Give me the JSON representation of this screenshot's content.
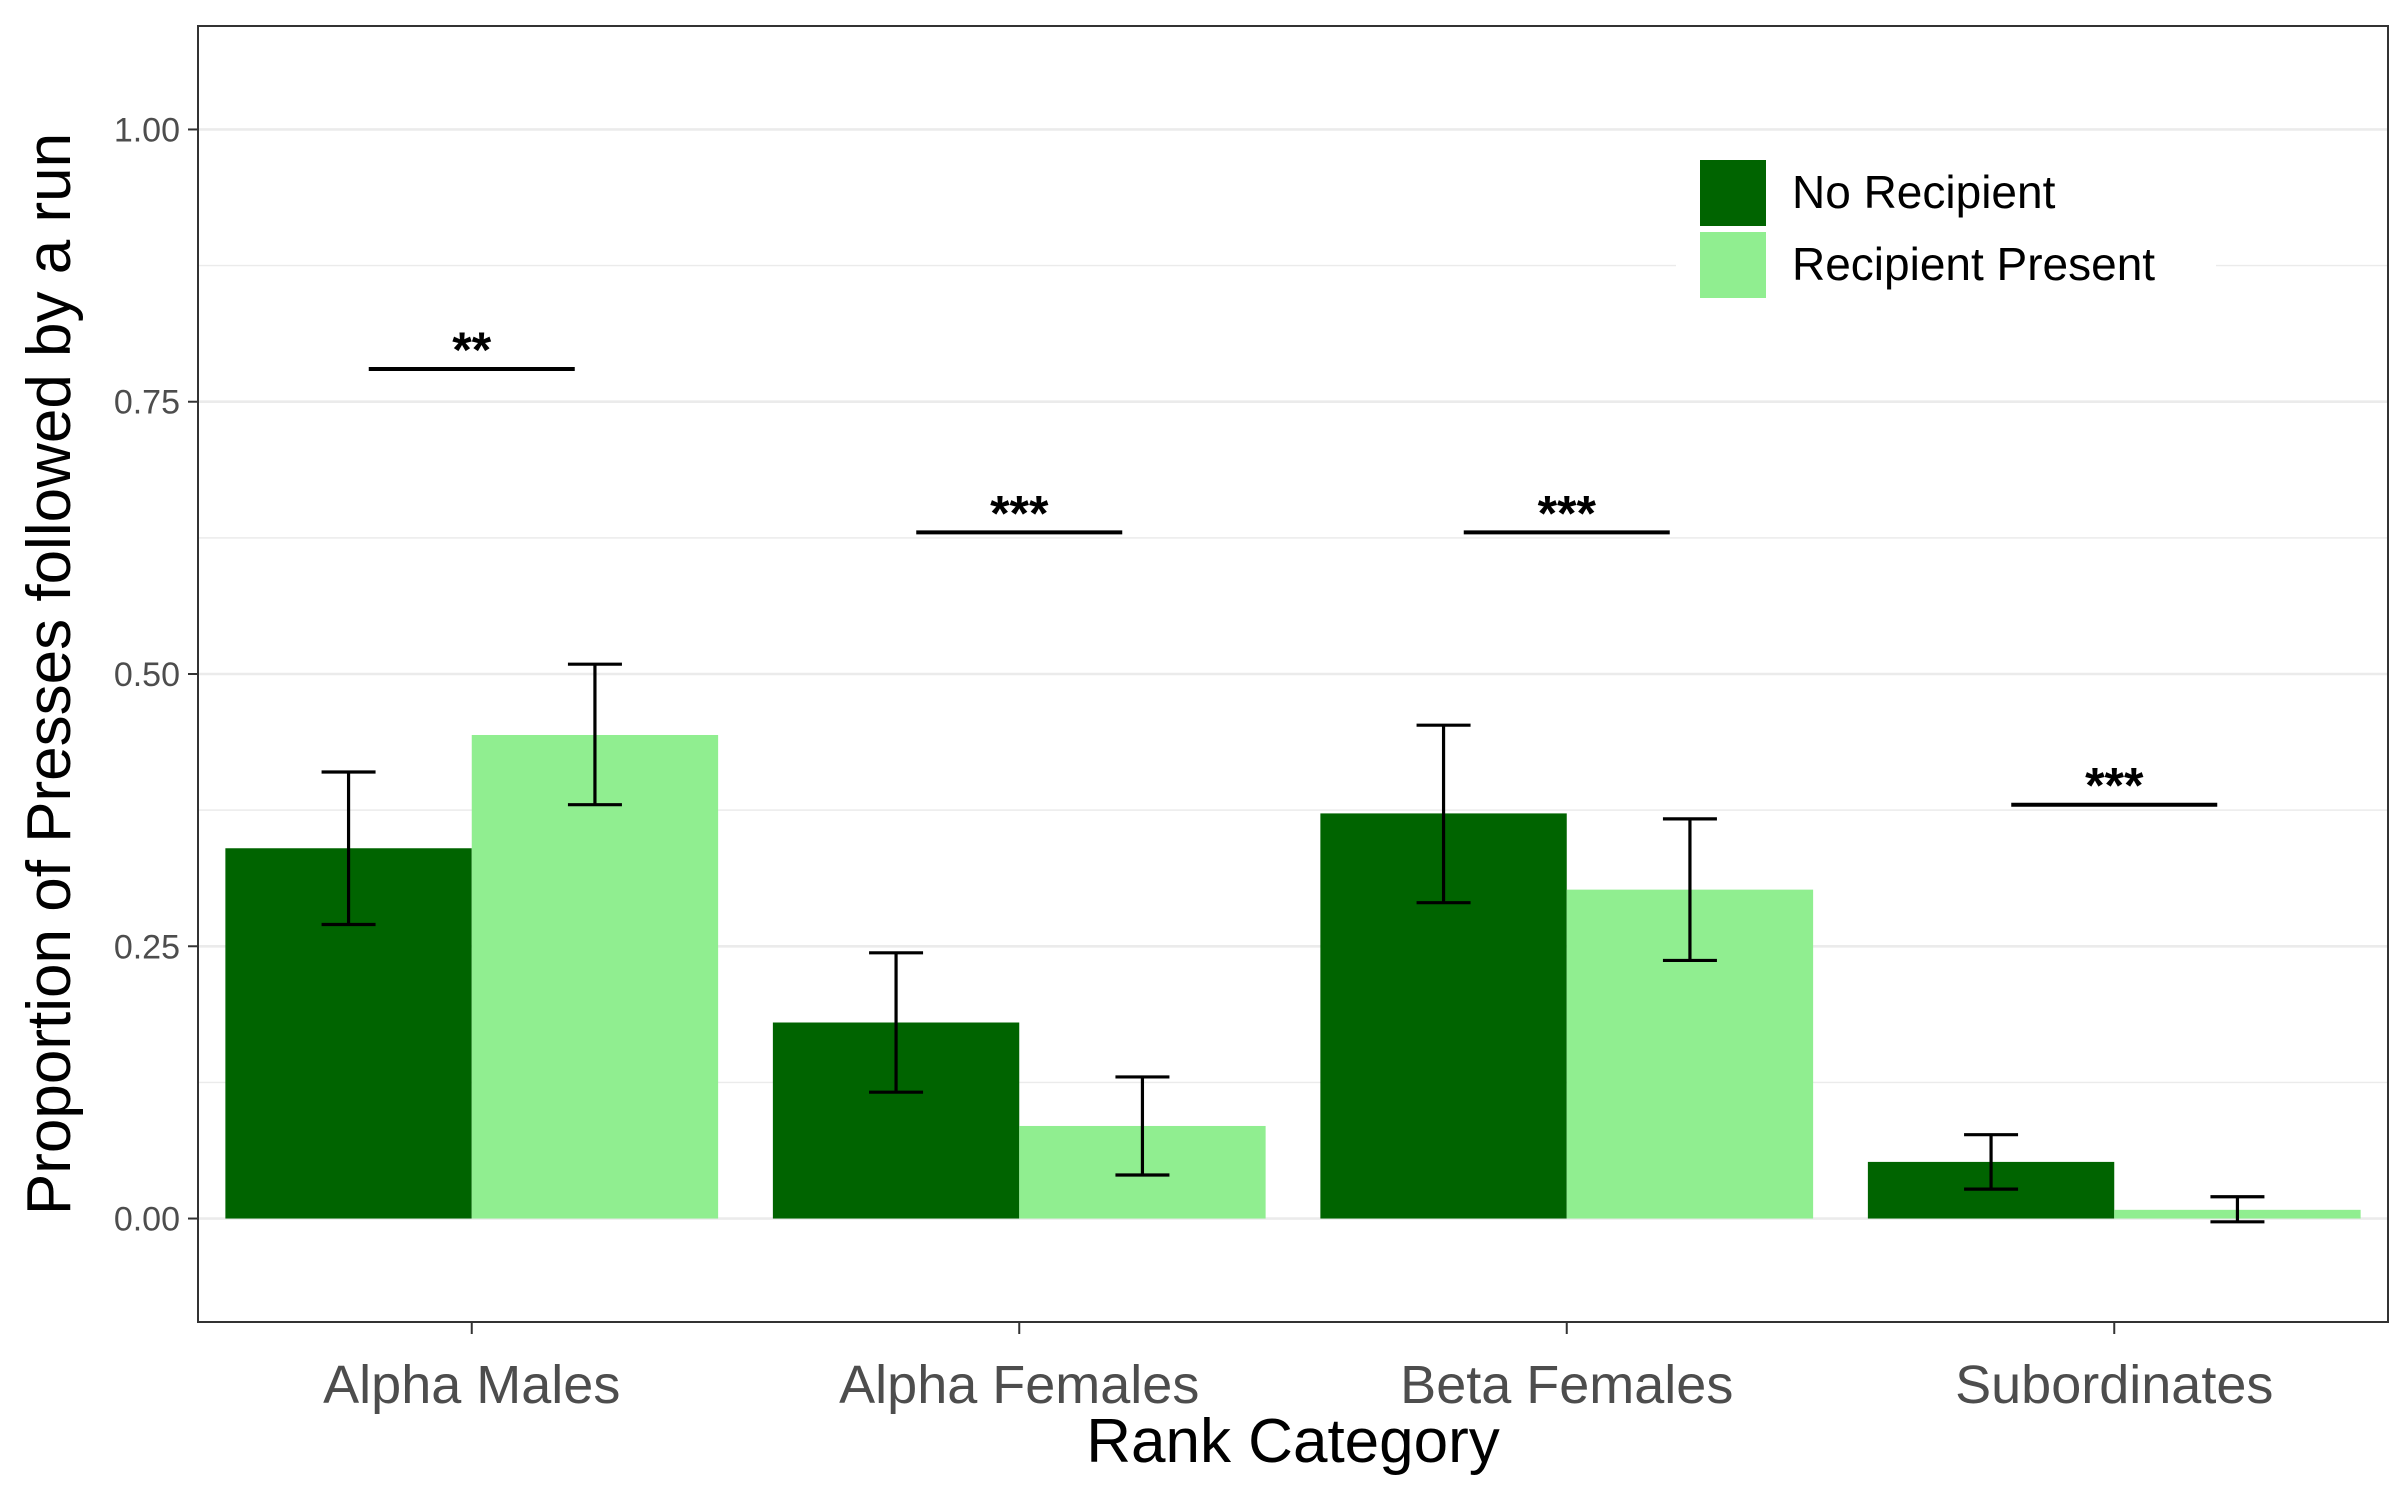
{
  "chart_data": {
    "type": "bar",
    "xlabel": "Rank Category",
    "ylabel": "Proportion of Presses followed by a run",
    "categories": [
      "Alpha Males",
      "Alpha Females",
      "Beta Females",
      "Subordinates"
    ],
    "ylim": [
      -0.095,
      1.095
    ],
    "yticks": [
      0.0,
      0.25,
      0.5,
      0.75,
      1.0
    ],
    "ytick_labels": [
      "0.00",
      "0.25",
      "0.50",
      "0.75",
      "1.00"
    ],
    "grid": true,
    "legend_position": "top-right",
    "series": [
      {
        "name": "No Recipient",
        "color": "#006400",
        "values": [
          0.34,
          0.18,
          0.372,
          0.052
        ],
        "error_low": [
          0.27,
          0.116,
          0.29,
          0.027
        ],
        "error_high": [
          0.41,
          0.244,
          0.453,
          0.077
        ]
      },
      {
        "name": "Recipient Present",
        "color": "#90ee90",
        "values": [
          0.444,
          0.085,
          0.302,
          0.008
        ],
        "error_low": [
          0.38,
          0.04,
          0.237,
          -0.003
        ],
        "error_high": [
          0.509,
          0.13,
          0.367,
          0.02
        ]
      }
    ],
    "annotations": [
      {
        "category": "Alpha Males",
        "label": "**",
        "y": 0.78
      },
      {
        "category": "Alpha Females",
        "label": "***",
        "y": 0.63
      },
      {
        "category": "Beta Females",
        "label": "***",
        "y": 0.63
      },
      {
        "category": "Subordinates",
        "label": "***",
        "y": 0.38
      }
    ]
  }
}
